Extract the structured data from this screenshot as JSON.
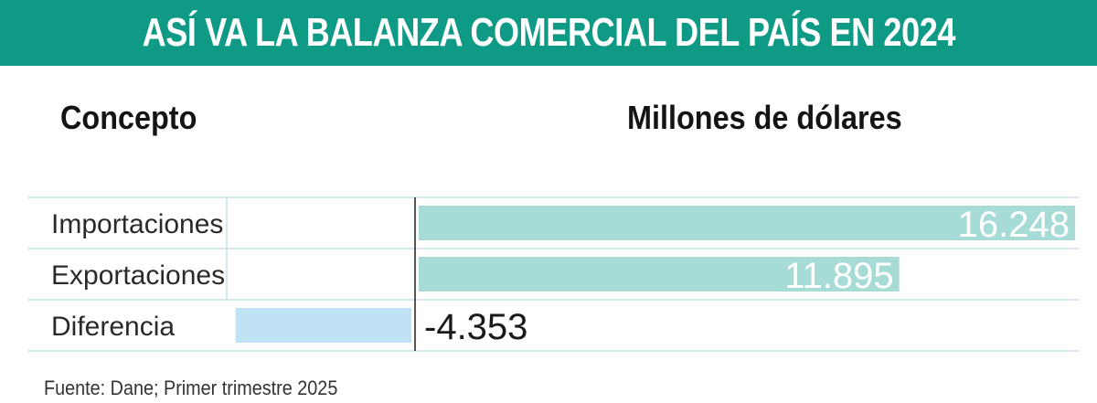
{
  "header": {
    "title": "ASÍ VA LA BALANZA COMERCIAL DEL PAÍS EN 2024"
  },
  "columns": {
    "concept": "Concepto",
    "value": "Millones de dólares"
  },
  "source": "Fuente: Dane; Primer trimestre 2025",
  "colors": {
    "banner": "#0f9a86",
    "positive_bar": "#a7dcd6",
    "negative_bar": "#bfe3f5",
    "divider": "#d3e7f3"
  },
  "chart_data": {
    "type": "bar",
    "orientation": "horizontal",
    "title": "ASÍ VA LA BALANZA COMERCIAL DEL PAÍS EN 2024",
    "xlabel": "Millones de dólares",
    "ylabel": "Concepto",
    "categories": [
      "Importaciones",
      "Exportaciones",
      "Diferencia"
    ],
    "values": [
      16248,
      11895,
      -4353
    ],
    "value_labels": [
      "16.248",
      "11.895",
      "-4.353"
    ],
    "xlim": [
      -4353,
      16248
    ],
    "grid": false,
    "legend": "none"
  }
}
